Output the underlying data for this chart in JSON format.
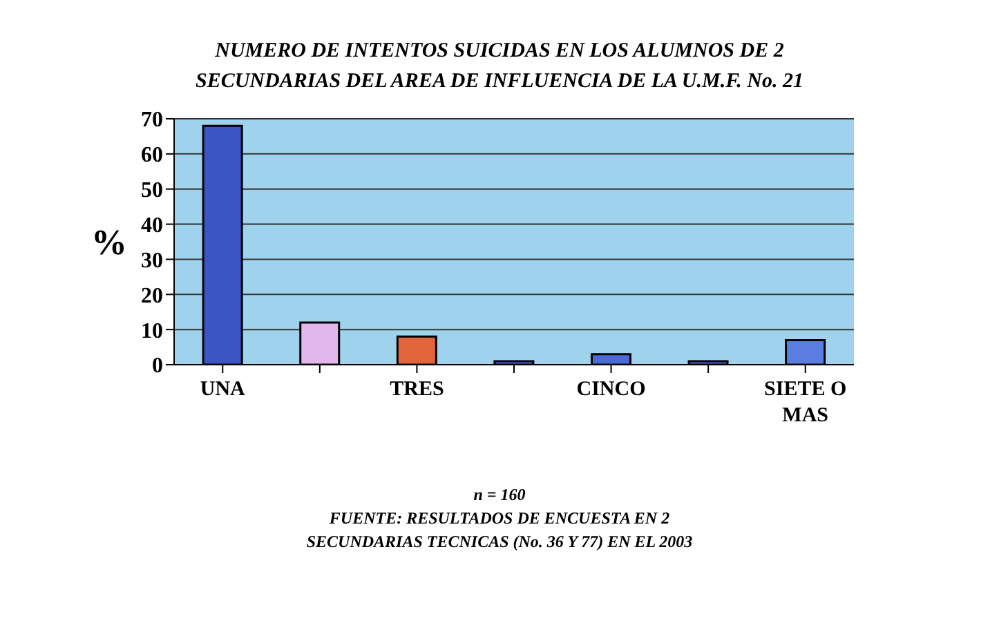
{
  "chart_data": {
    "type": "bar",
    "title": "NUMERO DE INTENTOS SUICIDAS EN LOS ALUMNOS DE 2 SECUNDARIAS DEL AREA DE INFLUENCIA DE LA U.M.F. No. 21",
    "ylabel": "%",
    "categories": [
      "UNA",
      null,
      "TRES",
      null,
      "CINCO",
      null,
      "SIETE O MAS"
    ],
    "values": [
      68,
      12,
      8,
      1,
      3,
      1,
      7
    ],
    "colors": [
      "#3a55c4",
      "#e2b8ec",
      "#e2643a",
      "#4a66d0",
      "#4a6ad6",
      "#4a66d0",
      "#5a7ee0"
    ],
    "ylim": [
      0,
      70
    ],
    "yticks": [
      0,
      10,
      20,
      30,
      40,
      50,
      60,
      70
    ],
    "grid": "y",
    "annotations": [
      "n = 160",
      "FUENTE: RESULTADOS DE ENCUESTA EN 2 SECUNDARIAS TECNICAS (No. 36 Y 77) EN EL 2003"
    ]
  }
}
